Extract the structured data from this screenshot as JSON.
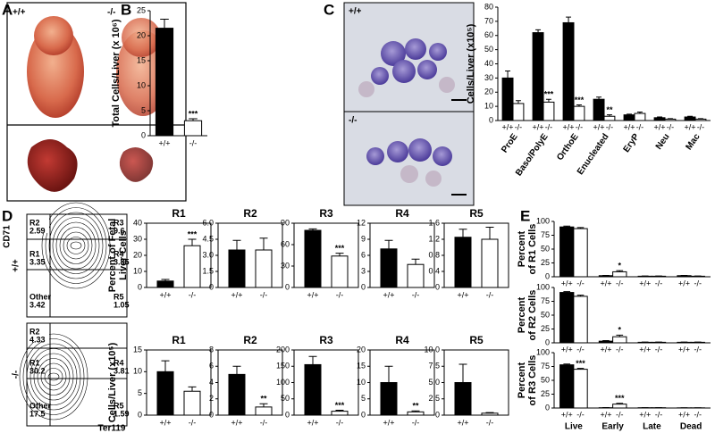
{
  "panel_labels": [
    "A",
    "B",
    "C",
    "D",
    "E"
  ],
  "panel_a": {
    "genotypes": [
      "+/+",
      "-/-"
    ]
  },
  "panel_c_images": {
    "genotypes": [
      "+/+",
      "-/-"
    ]
  },
  "panel_d_flow": {
    "x_label": "Ter119",
    "y_label": "CD71",
    "plots": [
      {
        "genotype": "+/+",
        "gates": [
          {
            "name": "R2",
            "value": 2.59
          },
          {
            "name": "R3",
            "value": 9.6
          },
          {
            "name": "R1",
            "value": 3.35
          },
          {
            "name": "R4",
            "value": 3.85
          },
          {
            "name": "Other",
            "value": 3.42
          },
          {
            "name": "R5",
            "value": 1.05
          }
        ]
      },
      {
        "genotype": "-/-",
        "gates": [
          {
            "name": "R2",
            "value": 4.33
          },
          {
            "name": "R1",
            "value": 30.2
          },
          {
            "name": "R4",
            "value": 3.81
          },
          {
            "name": "Other",
            "value": 17.5
          },
          {
            "name": "R5",
            "value": 1.59
          }
        ]
      }
    ]
  },
  "chart_data": [
    {
      "type": "bar",
      "y_label": "Total Cells/Liver (x 10⁶)",
      "categories": [
        "+/+",
        "-/-"
      ],
      "colors": [
        "#000000",
        "#ffffff"
      ],
      "values": [
        21.5,
        3
      ],
      "errors": [
        1.8,
        0.4
      ],
      "significance": [
        null,
        "***"
      ],
      "ylim": [
        0,
        25
      ],
      "yticks": [
        0,
        5,
        10,
        15,
        20,
        25
      ]
    },
    {
      "type": "grouped-bar",
      "y_label": "Cells/Liver (x10⁵)",
      "categories": [
        "ProE",
        "Baso/PolyE",
        "OrthoE",
        "Enucleated",
        "EryP",
        "Neu",
        "Mac"
      ],
      "series": [
        {
          "name": "+/+",
          "color": "#000000",
          "values": [
            30,
            62,
            69,
            15,
            4,
            2,
            2.5
          ],
          "errors": [
            5,
            2,
            4,
            1.5,
            0.5,
            0.5,
            0.5
          ],
          "significance": [
            null,
            null,
            null,
            null,
            null,
            null,
            null
          ]
        },
        {
          "name": "-/-",
          "color": "#ffffff",
          "values": [
            12,
            13,
            10,
            3,
            5,
            1,
            1
          ],
          "errors": [
            2,
            2,
            1,
            1,
            1,
            0.3,
            0.3
          ],
          "significance": [
            null,
            "***",
            "***",
            "**",
            null,
            null,
            null
          ]
        }
      ],
      "ylim": [
        0,
        80
      ],
      "yticks": [
        0,
        10,
        20,
        30,
        40,
        50,
        60,
        70,
        80
      ]
    },
    {
      "type": "bar",
      "title": "R1",
      "y_label": [
        "Percent of Fetal",
        "Liver Cells"
      ],
      "categories": [
        "+/+",
        "-/-"
      ],
      "colors": [
        "#000000",
        "#ffffff"
      ],
      "values": [
        4,
        26
      ],
      "errors": [
        1,
        4
      ],
      "significance": [
        null,
        "***"
      ],
      "ylim": [
        0,
        40
      ],
      "yticks": [
        0,
        10,
        20,
        30,
        40
      ]
    },
    {
      "type": "bar",
      "title": "R2",
      "categories": [
        "+/+",
        "-/-"
      ],
      "colors": [
        "#000000",
        "#ffffff"
      ],
      "values": [
        3.5,
        3.5
      ],
      "errors": [
        0.9,
        1.1
      ],
      "significance": [
        null,
        null
      ],
      "ylim": [
        0,
        6
      ],
      "yticks": [
        0,
        1.5,
        {
          "value": 3,
          "label": "3.0"
        },
        4.5,
        {
          "value": 6,
          "label": "6.0"
        }
      ]
    },
    {
      "type": "bar",
      "title": "R3",
      "categories": [
        "+/+",
        "-/-"
      ],
      "colors": [
        "#000000",
        "#ffffff"
      ],
      "values": [
        80,
        44
      ],
      "errors": [
        2,
        4
      ],
      "significance": [
        null,
        "***"
      ],
      "ylim": [
        0,
        90
      ],
      "yticks": [
        0,
        30,
        60,
        90
      ]
    },
    {
      "type": "bar",
      "title": "R4",
      "categories": [
        "+/+",
        "-/-"
      ],
      "colors": [
        "#000000",
        "#ffffff"
      ],
      "values": [
        7.2,
        4.3
      ],
      "errors": [
        1.6,
        1
      ],
      "significance": [
        null,
        null
      ],
      "ylim": [
        0,
        12
      ],
      "yticks": [
        0,
        3,
        6,
        9,
        12
      ]
    },
    {
      "type": "bar",
      "title": "R5",
      "categories": [
        "+/+",
        "-/-"
      ],
      "colors": [
        "#000000",
        "#ffffff"
      ],
      "values": [
        1.25,
        1.2
      ],
      "errors": [
        0.2,
        0.3
      ],
      "significance": [
        null,
        null
      ],
      "ylim": [
        0,
        1.6
      ],
      "yticks": [
        0,
        0.4,
        0.8,
        1.2,
        1.6
      ]
    },
    {
      "type": "bar",
      "title": "R1",
      "y_label": "Cells/Liver (x10⁵)",
      "categories": [
        "+/+",
        "-/-"
      ],
      "colors": [
        "#000000",
        "#ffffff"
      ],
      "values": [
        10,
        5.5
      ],
      "errors": [
        2.5,
        1
      ],
      "significance": [
        null,
        null
      ],
      "ylim": [
        0,
        15
      ],
      "yticks": [
        0,
        5,
        10,
        15
      ]
    },
    {
      "type": "bar",
      "title": "R2",
      "categories": [
        "+/+",
        "-/-"
      ],
      "colors": [
        "#000000",
        "#ffffff"
      ],
      "values": [
        5,
        1
      ],
      "errors": [
        1,
        0.4
      ],
      "significance": [
        null,
        "**"
      ],
      "ylim": [
        0,
        8
      ],
      "yticks": [
        0,
        2,
        4,
        6,
        8
      ]
    },
    {
      "type": "bar",
      "title": "R3",
      "categories": [
        "+/+",
        "-/-"
      ],
      "colors": [
        "#000000",
        "#ffffff"
      ],
      "values": [
        155,
        12
      ],
      "errors": [
        25,
        3
      ],
      "significance": [
        null,
        "***"
      ],
      "ylim": [
        0,
        200
      ],
      "yticks": [
        0,
        50,
        100,
        150,
        200
      ]
    },
    {
      "type": "bar",
      "title": "R4",
      "categories": [
        "+/+",
        "-/-"
      ],
      "colors": [
        "#000000",
        "#ffffff"
      ],
      "values": [
        10,
        1
      ],
      "errors": [
        5,
        0.3
      ],
      "significance": [
        null,
        "**"
      ],
      "ylim": [
        0,
        20
      ],
      "yticks": [
        0,
        5,
        10,
        15,
        20
      ]
    },
    {
      "type": "bar",
      "title": "R5",
      "categories": [
        "+/+",
        "-/-"
      ],
      "colors": [
        "#000000",
        "#ffffff"
      ],
      "values": [
        5,
        0.3
      ],
      "errors": [
        2.8,
        0.1
      ],
      "significance": [
        null,
        null
      ],
      "ylim": [
        0,
        10
      ],
      "yticks": [
        0,
        2.5,
        {
          "value": 5,
          "label": "5.0"
        },
        7.5,
        {
          "value": 10,
          "label": "10.0"
        }
      ]
    },
    {
      "type": "grouped-bar",
      "y_label": [
        "Percent",
        "of R1 Cells"
      ],
      "categories": [
        "Live",
        "Early",
        "Late",
        "Dead"
      ],
      "series": [
        {
          "name": "+/+",
          "color": "#000000",
          "values": [
            90,
            2,
            1,
            2
          ],
          "errors": [
            1.5,
            0.5,
            0.5,
            0.5
          ],
          "significance": [
            null,
            null,
            null,
            null
          ]
        },
        {
          "name": "-/-",
          "color": "#ffffff",
          "values": [
            87,
            9,
            1,
            1
          ],
          "errors": [
            2,
            2,
            0.5,
            0.5
          ],
          "significance": [
            null,
            "*",
            null,
            null
          ]
        }
      ],
      "ylim": [
        0,
        100
      ],
      "yticks": [
        0,
        25,
        50,
        75,
        100
      ]
    },
    {
      "type": "grouped-bar",
      "y_label": [
        "Percent",
        "of R2 Cells"
      ],
      "categories": [
        "Live",
        "Early",
        "Late",
        "Dead"
      ],
      "series": [
        {
          "name": "+/+",
          "color": "#000000",
          "values": [
            91,
            3,
            1,
            1
          ],
          "errors": [
            1.5,
            1,
            0.5,
            0.5
          ],
          "significance": [
            null,
            null,
            null,
            null
          ]
        },
        {
          "name": "-/-",
          "color": "#ffffff",
          "values": [
            84,
            11,
            1,
            1
          ],
          "errors": [
            2,
            3,
            0.5,
            0.5
          ],
          "significance": [
            null,
            "*",
            null,
            null
          ]
        }
      ],
      "ylim": [
        0,
        100
      ],
      "yticks": [
        0,
        25,
        50,
        75,
        100
      ]
    },
    {
      "type": "grouped-bar",
      "y_label": [
        "Percent",
        "of R3 Cells"
      ],
      "categories": [
        "Live",
        "Early",
        "Late",
        "Dead"
      ],
      "series": [
        {
          "name": "+/+",
          "color": "#000000",
          "values": [
            78,
            0.5,
            0.5,
            0.3
          ],
          "errors": [
            1.5,
            0.3,
            0.2,
            0.2
          ],
          "significance": [
            null,
            null,
            null,
            null
          ]
        },
        {
          "name": "-/-",
          "color": "#ffffff",
          "values": [
            70,
            7,
            0.5,
            0.3
          ],
          "errors": [
            1.5,
            1.5,
            0.2,
            0.2
          ],
          "significance": [
            "***",
            "***",
            null,
            null
          ]
        }
      ],
      "ylim": [
        0,
        100
      ],
      "yticks": [
        0,
        25,
        50,
        75,
        100
      ]
    }
  ]
}
